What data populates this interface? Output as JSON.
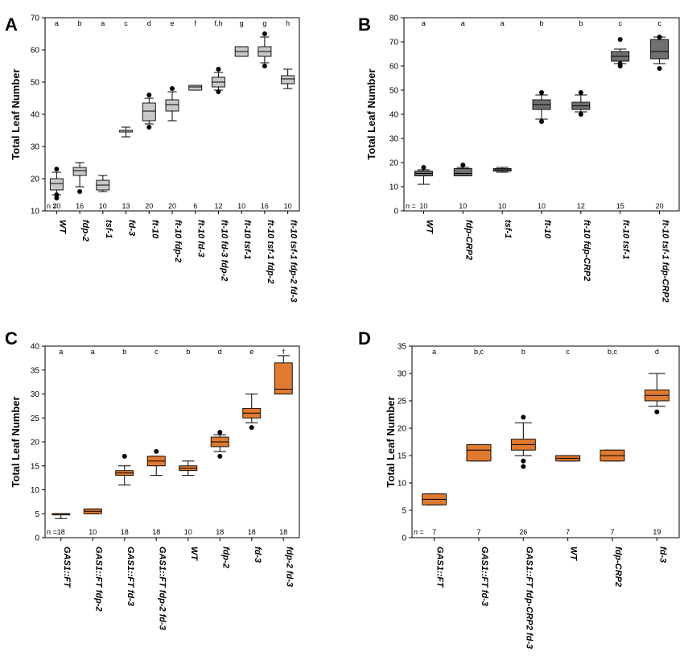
{
  "chart_data": [
    {
      "type": "box",
      "panel_label": "A",
      "ylabel": "Total Leaf Number",
      "ylim": [
        10,
        70
      ],
      "yticks": [
        10,
        20,
        30,
        40,
        50,
        60,
        70
      ],
      "n_label": "n =",
      "box_color": "#c8c8c8",
      "categories": [
        "WT",
        "fdp-2",
        "tsf-1",
        "fd-3",
        "ft-10",
        "ft-10 fdp-2",
        "ft-10 fd-3",
        "ft-10 fd-3 fdp-2",
        "ft-10 tsf-1",
        "ft-10 tsf-1 fdp-2",
        "ft-10 tsf-1 fdp-2 fd-3"
      ],
      "n": [
        "20",
        "16",
        "10",
        "13",
        "20",
        "20",
        "6",
        "12",
        "10",
        "16",
        "10"
      ],
      "letters": [
        "a",
        "b",
        "a",
        "c",
        "d",
        "e",
        "f",
        "f,h",
        "g",
        "g",
        "h"
      ],
      "boxes": [
        {
          "min": 15,
          "q1": 16.5,
          "median": 18.5,
          "q3": 20,
          "max": 22,
          "outliers": [
            23,
            14,
            15
          ]
        },
        {
          "min": 17.5,
          "q1": 21,
          "median": 22.5,
          "q3": 23.5,
          "max": 25,
          "outliers": [
            16
          ]
        },
        {
          "min": 16,
          "q1": 16.5,
          "median": 18,
          "q3": 19.5,
          "max": 21,
          "outliers": []
        },
        {
          "min": 33,
          "q1": 34.5,
          "median": 35,
          "q3": 35,
          "max": 36,
          "outliers": []
        },
        {
          "min": 37,
          "q1": 38,
          "median": 41,
          "q3": 43.5,
          "max": 45,
          "outliers": [
            36,
            46
          ]
        },
        {
          "min": 38,
          "q1": 41,
          "median": 43,
          "q3": 44.5,
          "max": 47,
          "outliers": [
            48
          ]
        },
        {
          "min": 47.5,
          "q1": 47.5,
          "median": 48.5,
          "q3": 49,
          "max": 49,
          "outliers": []
        },
        {
          "min": 47.5,
          "q1": 48.5,
          "median": 50,
          "q3": 51.5,
          "max": 53,
          "outliers": [
            47,
            54
          ]
        },
        {
          "min": 58,
          "q1": 58,
          "median": 59.5,
          "q3": 61,
          "max": 61,
          "outliers": []
        },
        {
          "min": 56,
          "q1": 58,
          "median": 59.5,
          "q3": 61,
          "max": 64,
          "outliers": [
            55,
            65
          ]
        },
        {
          "min": 48,
          "q1": 49.5,
          "median": 51,
          "q3": 52,
          "max": 54,
          "outliers": []
        }
      ]
    },
    {
      "type": "box",
      "panel_label": "B",
      "ylabel": "Total Leaf Number",
      "ylim": [
        0,
        80
      ],
      "yticks": [
        0,
        10,
        20,
        30,
        40,
        50,
        60,
        70,
        80
      ],
      "n_label": "n =",
      "box_color": "#707070",
      "categories": [
        "WT",
        "fdp-CRP2",
        "tsf-1",
        "ft-10",
        "ft-10 fdp-CRP2",
        "ft-10 tsf-1",
        "ft-10 tsf-1 fdp-CRP2"
      ],
      "n": [
        "10",
        "10",
        "10",
        "10",
        "12",
        "15",
        "20"
      ],
      "letters": [
        "a",
        "a",
        "a",
        "b",
        "b",
        "c",
        "c"
      ],
      "boxes": [
        {
          "min": 11,
          "q1": 14.5,
          "median": 15.5,
          "q3": 16.5,
          "max": 17,
          "outliers": [
            18
          ]
        },
        {
          "min": 14.5,
          "q1": 14.5,
          "median": 15.5,
          "q3": 17.5,
          "max": 18,
          "outliers": [
            19
          ]
        },
        {
          "min": 16,
          "q1": 16.5,
          "median": 17,
          "q3": 17.5,
          "max": 18,
          "outliers": []
        },
        {
          "min": 38,
          "q1": 42,
          "median": 44,
          "q3": 46,
          "max": 48,
          "outliers": [
            37,
            49
          ]
        },
        {
          "min": 41,
          "q1": 42,
          "median": 43.5,
          "q3": 45,
          "max": 48,
          "outliers": [
            40,
            49
          ]
        },
        {
          "min": 61,
          "q1": 62,
          "median": 64,
          "q3": 66,
          "max": 67,
          "outliers": [
            60,
            61,
            71
          ]
        },
        {
          "min": 61,
          "q1": 63,
          "median": 66,
          "q3": 71,
          "max": 72,
          "outliers": [
            59,
            72
          ]
        }
      ]
    },
    {
      "type": "box",
      "panel_label": "C",
      "ylabel": "Total Leaf Number",
      "ylim": [
        0,
        40
      ],
      "yticks": [
        0,
        5,
        10,
        15,
        20,
        25,
        30,
        35,
        40
      ],
      "n_label": "n =",
      "box_color": "#e07a2e",
      "categories": [
        "GAS1::FT",
        "GAS1::FT fdp-2",
        "GAS1::FT fd-3",
        "GAS1::FT fdp-2 fd-3",
        "WT",
        "fdp-2",
        "fd-3",
        "fdp-2 fd-3"
      ],
      "n": [
        "18",
        "10",
        "18",
        "18",
        "10",
        "18",
        "18",
        "18"
      ],
      "letters": [
        "",
        "a",
        "b",
        "c",
        "b",
        "d",
        "e",
        "f"
      ],
      "letters_shown": [
        "a",
        "a",
        "b",
        "c",
        "b",
        "d",
        "e",
        "f"
      ],
      "boxes": [
        {
          "min": 4,
          "q1": 5,
          "median": 5,
          "q3": 5,
          "max": 5,
          "outliers": []
        },
        {
          "min": 5,
          "q1": 5,
          "median": 5.5,
          "q3": 6,
          "max": 6,
          "outliers": []
        },
        {
          "min": 11,
          "q1": 13,
          "median": 13.5,
          "q3": 14,
          "max": 15,
          "outliers": [
            17
          ]
        },
        {
          "min": 13,
          "q1": 15,
          "median": 16,
          "q3": 17,
          "max": 17,
          "outliers": [
            18
          ]
        },
        {
          "min": 13,
          "q1": 14,
          "median": 14.5,
          "q3": 15,
          "max": 16,
          "outliers": []
        },
        {
          "min": 18,
          "q1": 19,
          "median": 20,
          "q3": 21,
          "max": 21.5,
          "outliers": [
            17,
            22
          ]
        },
        {
          "min": 24,
          "q1": 25,
          "median": 26,
          "q3": 27,
          "max": 30,
          "outliers": [
            23
          ]
        },
        {
          "min": 30,
          "q1": 30,
          "median": 31,
          "q3": 36.5,
          "max": 38,
          "outliers": []
        }
      ]
    },
    {
      "type": "box",
      "panel_label": "D",
      "ylabel": "Total Leaf Number",
      "ylim": [
        0,
        35
      ],
      "yticks": [
        0,
        5,
        10,
        15,
        20,
        25,
        30,
        35
      ],
      "n_label": "n =",
      "box_color": "#e07a2e",
      "categories": [
        "GAS1::FT",
        "GAS1::FT fd-3",
        "GAS1::FT fdp-CRP2 fd-3",
        "WT",
        "fdp-CRP2",
        "fd-3"
      ],
      "n": [
        "7",
        "7",
        "26",
        "7",
        "7",
        "19"
      ],
      "letters": [
        "a",
        "b,c",
        "b",
        "c",
        "b,c",
        "d"
      ],
      "boxes": [
        {
          "min": 6,
          "q1": 6,
          "median": 7,
          "q3": 8,
          "max": 8,
          "outliers": []
        },
        {
          "min": 14,
          "q1": 14,
          "median": 16,
          "q3": 17,
          "max": 17,
          "outliers": []
        },
        {
          "min": 15,
          "q1": 16,
          "median": 17,
          "q3": 18,
          "max": 21,
          "outliers": [
            13,
            14,
            22
          ]
        },
        {
          "min": 14,
          "q1": 14,
          "median": 14.5,
          "q3": 15,
          "max": 15,
          "outliers": []
        },
        {
          "min": 14,
          "q1": 14,
          "median": 15,
          "q3": 16,
          "max": 16,
          "outliers": []
        },
        {
          "min": 24,
          "q1": 25,
          "median": 26,
          "q3": 27,
          "max": 30,
          "outliers": [
            23
          ]
        }
      ]
    }
  ]
}
